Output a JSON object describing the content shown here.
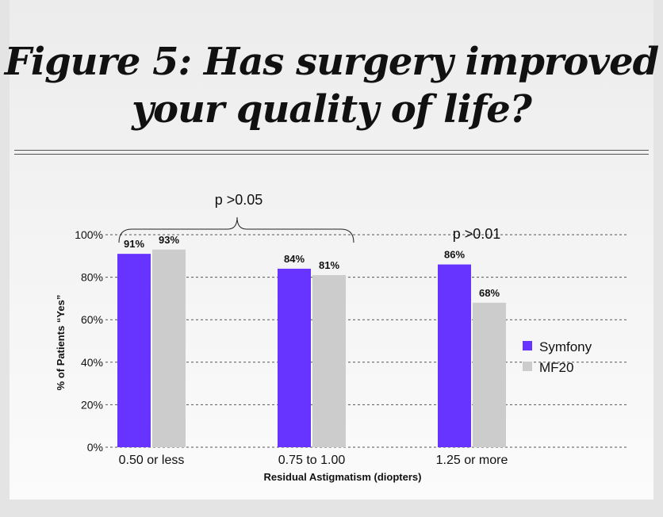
{
  "title_line1": "Figure 5: Has surgery improved",
  "title_line2": "your quality of life?",
  "colors": {
    "symfony": "#6633ff",
    "mf20": "#cccccc"
  },
  "chart_data": {
    "type": "bar",
    "categories": [
      "0.50 or less",
      "0.75 to 1.00",
      "1.25 or more"
    ],
    "series": [
      {
        "name": "Symfony",
        "values": [
          91,
          84,
          86
        ],
        "labels": [
          "91%",
          "84%",
          "86%"
        ]
      },
      {
        "name": "MF20",
        "values": [
          93,
          81,
          68
        ],
        "labels": [
          "93%",
          "81%",
          "68%"
        ]
      }
    ],
    "ylim": [
      0,
      100
    ],
    "yticks": [
      0,
      20,
      40,
      60,
      80,
      100
    ],
    "ytick_labels": [
      "0%",
      "20%",
      "40%",
      "60%",
      "80%",
      "100%"
    ],
    "xlabel": "Residual Astigmatism (diopters)",
    "ylabel": "% of Patients “Yes”",
    "grid": "dashed horizontal",
    "legend": "right",
    "annotations": [
      "p >0.05",
      "p >0.01"
    ]
  }
}
